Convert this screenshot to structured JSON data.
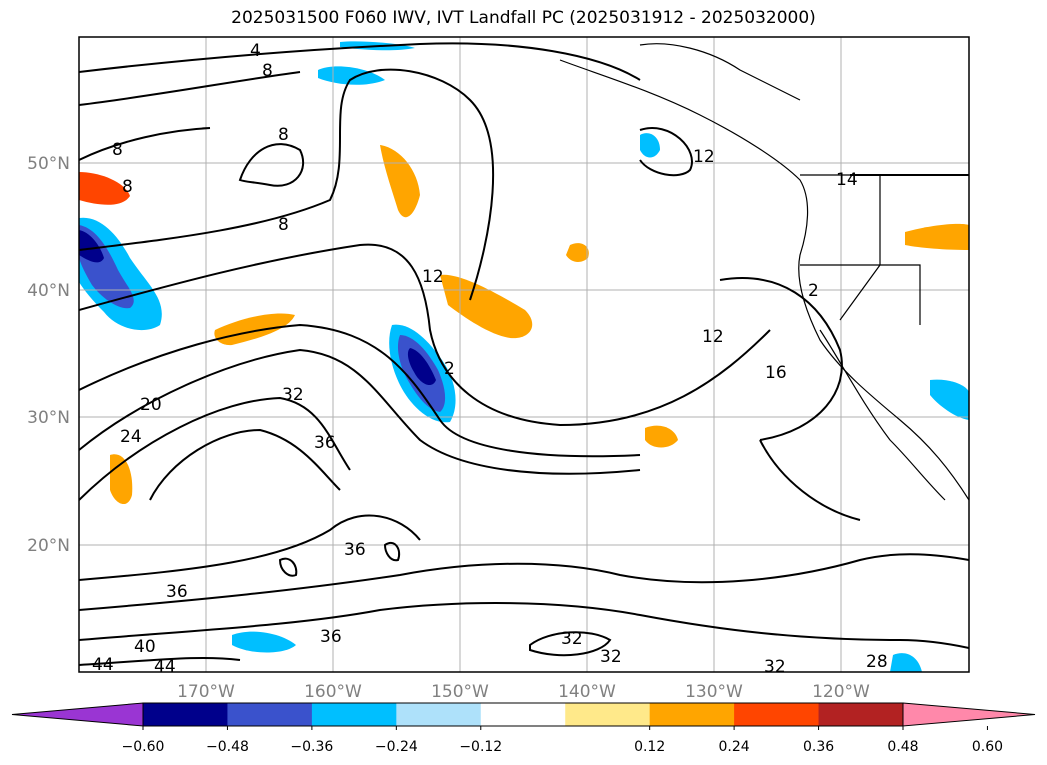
{
  "title": "2025031500 F060 IWV, IVT Landfall PC (2025031912 - 2025032000)",
  "map": {
    "lon_ticks": [
      "170°W",
      "160°W",
      "150°W",
      "140°W",
      "130°W",
      "120°W"
    ],
    "lat_ticks": [
      "50°N",
      "40°N",
      "30°N",
      "20°N"
    ],
    "contour_labels": [
      "4",
      "8",
      "8",
      "8",
      "8",
      "8",
      "12",
      "12",
      "12",
      "14",
      "16",
      "2",
      "20",
      "24",
      "28",
      "32",
      "32",
      "32",
      "32",
      "36",
      "36",
      "36",
      "36",
      "40",
      "44",
      "44",
      "2"
    ]
  },
  "colorbar": {
    "colors": [
      "#9a35d3",
      "#00008b",
      "#3a52cc",
      "#00bfff",
      "#aee1fa",
      "#ffffff",
      "#ffe98a",
      "#ffa500",
      "#ff4500",
      "#b22222",
      "#ff88aa"
    ],
    "tick_labels": [
      "−0.60",
      "−0.48",
      "−0.36",
      "−0.24",
      "−0.12",
      "0.12",
      "0.24",
      "0.36",
      "0.48",
      "0.60"
    ]
  },
  "colors": {
    "grid": "#b0b0b0",
    "contour": "#000000",
    "axis_label": "#808080"
  }
}
